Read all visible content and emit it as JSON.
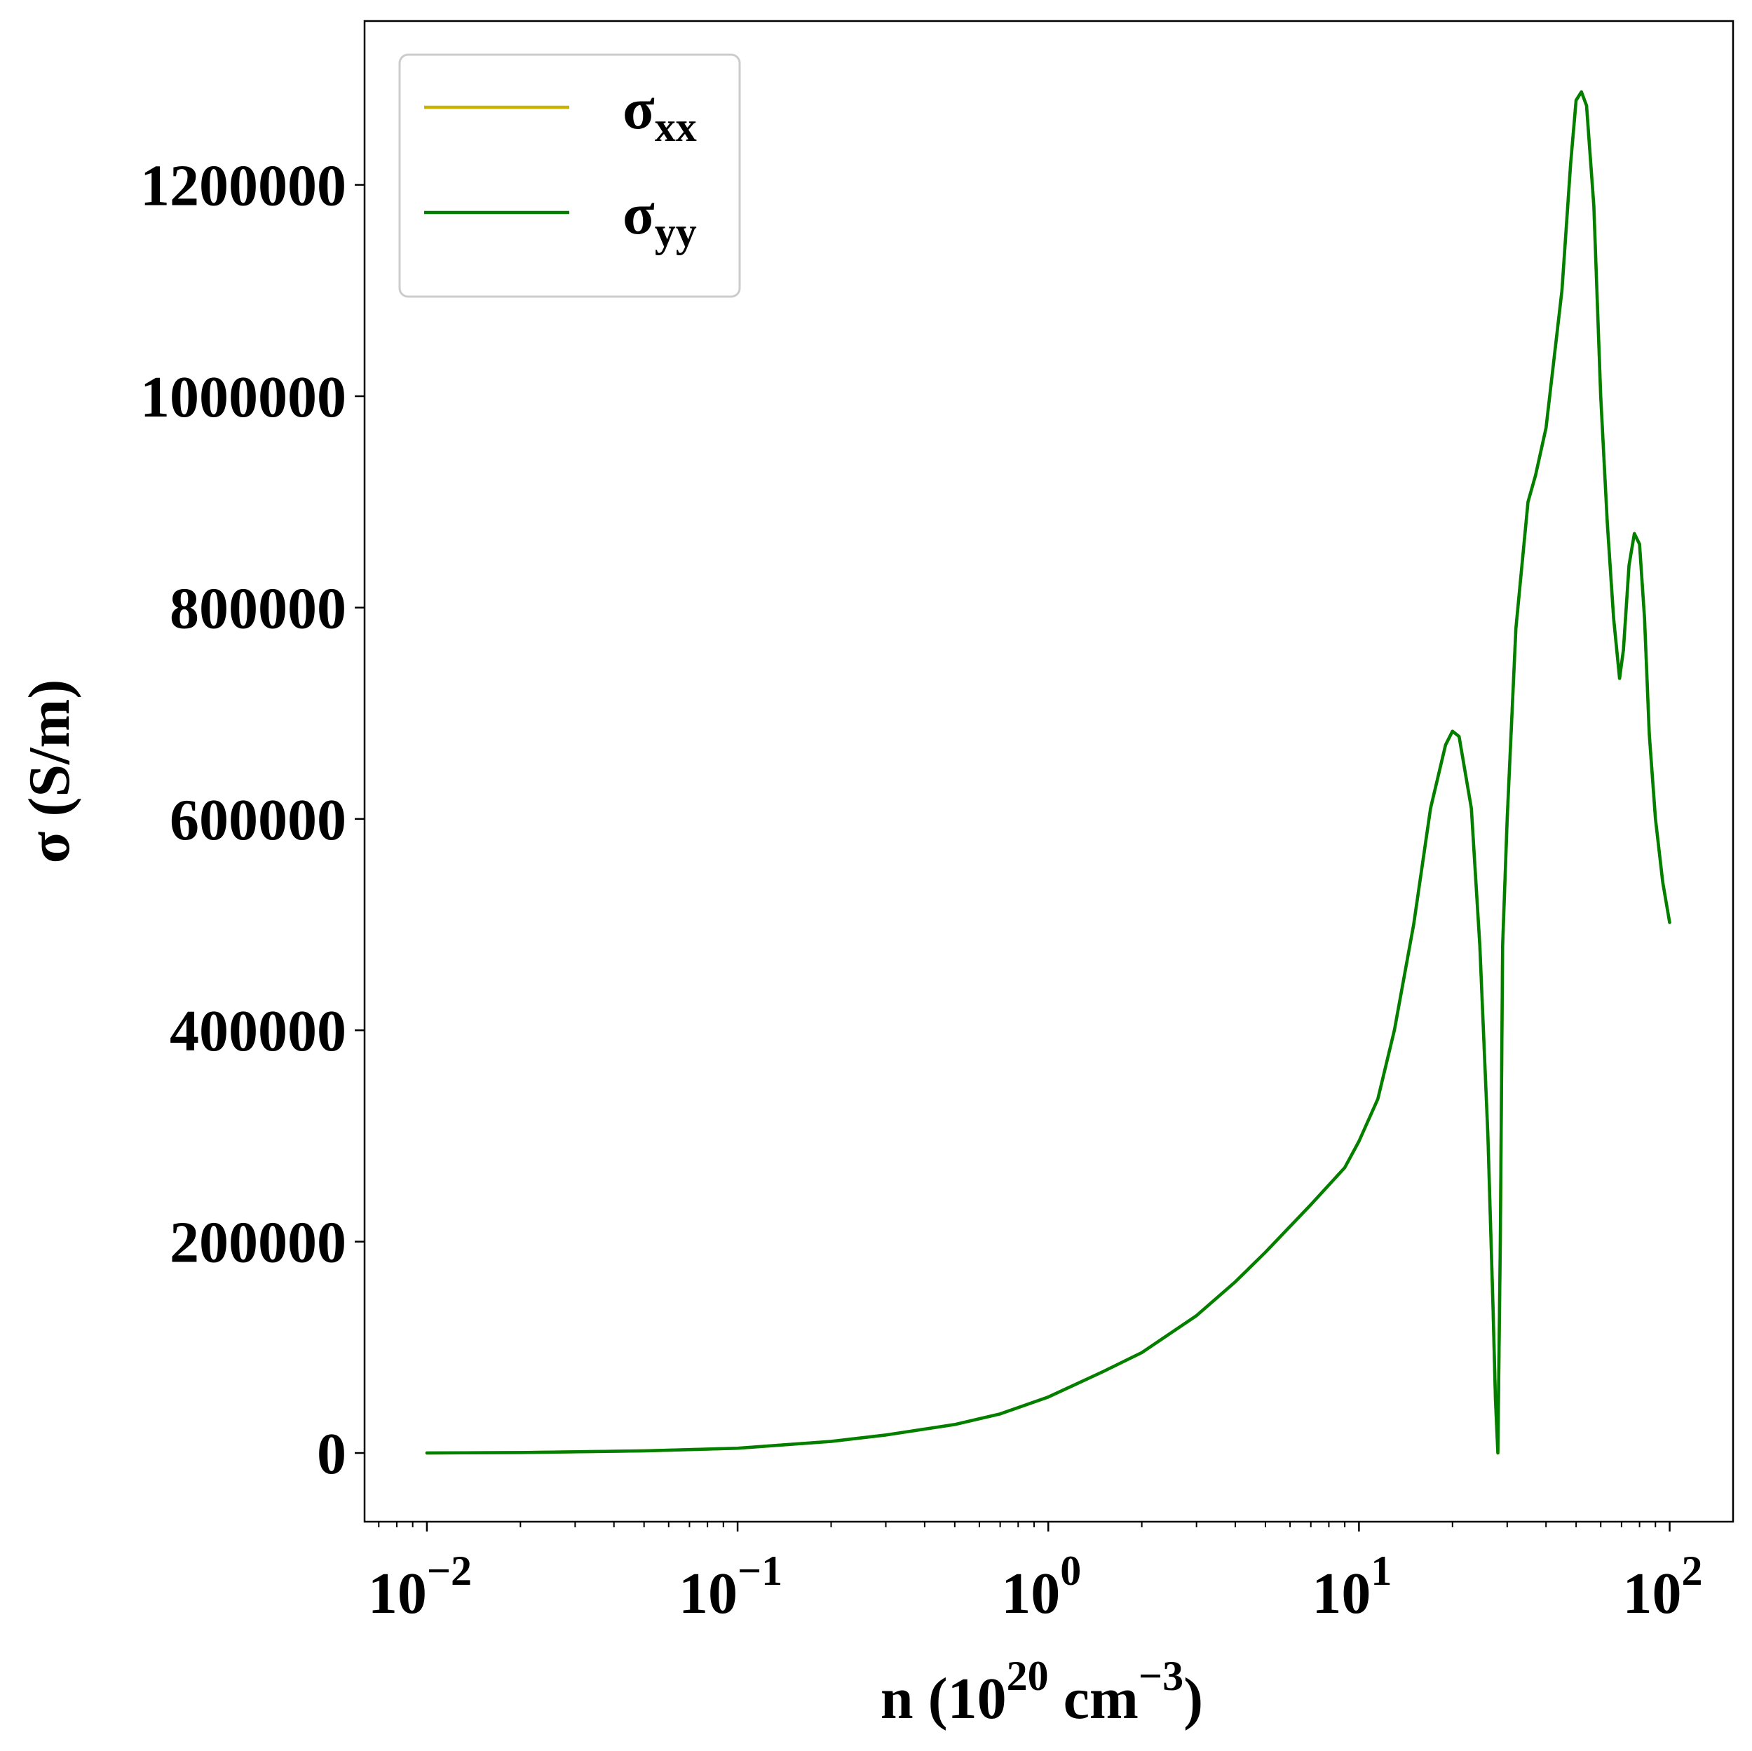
{
  "chart_data": {
    "type": "line",
    "title": "",
    "xlabel": {
      "base": "n (10",
      "sup1": "20",
      "mid": " cm",
      "sup2": "−3",
      "end": ")"
    },
    "ylabel": "σ (S/m)",
    "x_scale": "log",
    "xlim": [
      0.0063,
      160
    ],
    "ylim": [
      -65000,
      1355000
    ],
    "x_ticks": [
      {
        "value": 0.01,
        "base": "10",
        "exp": "−2"
      },
      {
        "value": 0.1,
        "base": "10",
        "exp": "−1"
      },
      {
        "value": 1,
        "base": "10",
        "exp": "0"
      },
      {
        "value": 10,
        "base": "10",
        "exp": "1"
      },
      {
        "value": 100,
        "base": "10",
        "exp": "2"
      }
    ],
    "y_ticks": [
      {
        "value": 0,
        "label": "0"
      },
      {
        "value": 200000,
        "label": "200000"
      },
      {
        "value": 400000,
        "label": "400000"
      },
      {
        "value": 600000,
        "label": "600000"
      },
      {
        "value": 800000,
        "label": "800000"
      },
      {
        "value": 1000000,
        "label": "1000000"
      },
      {
        "value": 1200000,
        "label": "1200000"
      }
    ],
    "grid": false,
    "legend_position": "top-left",
    "series": [
      {
        "name": "σxx",
        "symbol": "σ",
        "subscript": "xx",
        "color": "#c8b400",
        "x": [
          0.01,
          0.02,
          0.05,
          0.1,
          0.2,
          0.3,
          0.5,
          0.7,
          1.0,
          1.5,
          2.0,
          3.0,
          4.0,
          5.0,
          7.0,
          9.0,
          10.0,
          11.5,
          13.0,
          15.0,
          17.0,
          19.0,
          20.0,
          21.0,
          23.0,
          24.5,
          26.0,
          27.0,
          27.5,
          28.0,
          28.5,
          29.0,
          30.0,
          32.0,
          35.0,
          37.0,
          40.0,
          45.0,
          48.0,
          50.0,
          52.0,
          54.0,
          57.0,
          60.0,
          63.0,
          66.0,
          69.0,
          71.0,
          74.0,
          77.0,
          80.0,
          83.0,
          86.0,
          90.0,
          95.0,
          100.0
        ],
        "y": [
          0,
          400,
          2000,
          4500,
          11000,
          17000,
          27000,
          37000,
          53000,
          77000,
          95000,
          130000,
          162000,
          190000,
          235000,
          270000,
          295000,
          335000,
          400000,
          500000,
          610000,
          670000,
          683000,
          678000,
          610000,
          480000,
          300000,
          140000,
          50000,
          0,
          200000,
          480000,
          600000,
          780000,
          900000,
          925000,
          970000,
          1100000,
          1220000,
          1280000,
          1288000,
          1275000,
          1180000,
          1000000,
          880000,
          790000,
          733000,
          760000,
          840000,
          870000,
          860000,
          790000,
          680000,
          600000,
          540000,
          502000
        ]
      },
      {
        "name": "σyy",
        "symbol": "σ",
        "subscript": "yy",
        "color": "#007f00",
        "x": [
          0.01,
          0.02,
          0.05,
          0.1,
          0.2,
          0.3,
          0.5,
          0.7,
          1.0,
          1.5,
          2.0,
          3.0,
          4.0,
          5.0,
          7.0,
          9.0,
          10.0,
          11.5,
          13.0,
          15.0,
          17.0,
          19.0,
          20.0,
          21.0,
          23.0,
          24.5,
          26.0,
          27.0,
          27.5,
          28.0,
          28.5,
          29.0,
          30.0,
          32.0,
          35.0,
          37.0,
          40.0,
          45.0,
          48.0,
          50.0,
          52.0,
          54.0,
          57.0,
          60.0,
          63.0,
          66.0,
          69.0,
          71.0,
          74.0,
          77.0,
          80.0,
          83.0,
          86.0,
          90.0,
          95.0,
          100.0
        ],
        "y": [
          0,
          400,
          2000,
          4500,
          11000,
          17000,
          27000,
          37000,
          53000,
          77000,
          95000,
          130000,
          162000,
          190000,
          235000,
          270000,
          295000,
          335000,
          400000,
          500000,
          610000,
          670000,
          683000,
          678000,
          610000,
          480000,
          300000,
          140000,
          50000,
          0,
          200000,
          480000,
          600000,
          780000,
          900000,
          925000,
          970000,
          1100000,
          1220000,
          1280000,
          1288000,
          1275000,
          1180000,
          1000000,
          880000,
          790000,
          733000,
          760000,
          840000,
          870000,
          860000,
          790000,
          680000,
          600000,
          540000,
          502000
        ]
      }
    ]
  }
}
